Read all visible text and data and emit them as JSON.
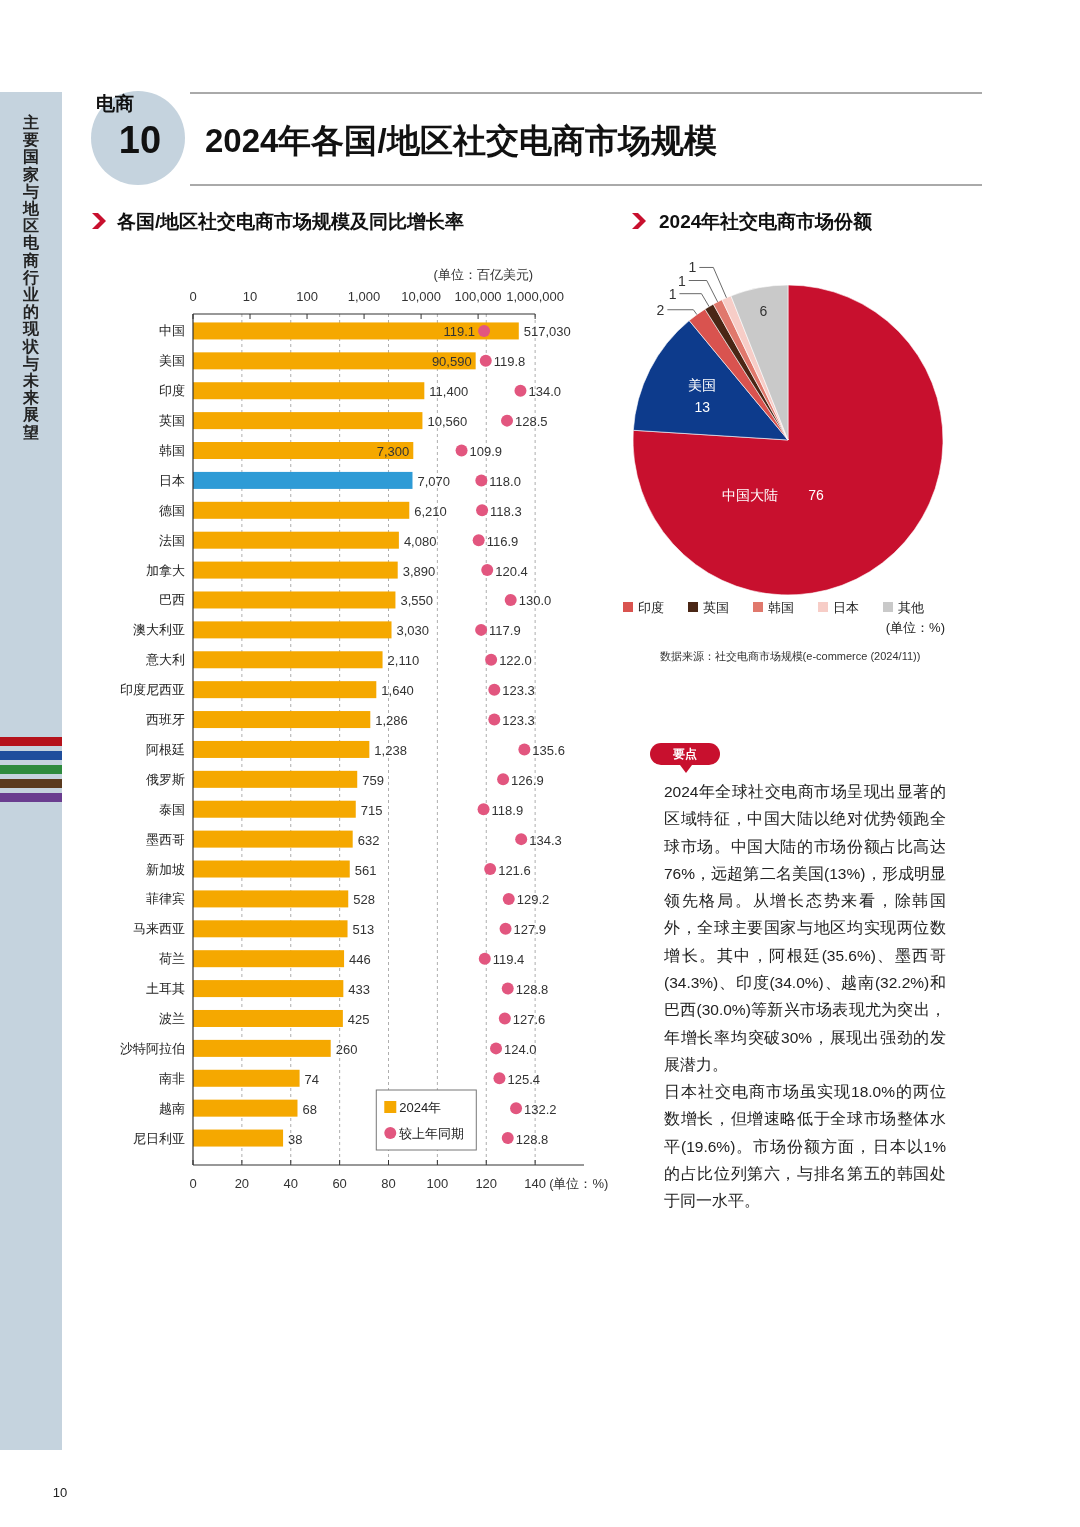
{
  "chart_data": [
    {
      "type": "bar",
      "orientation": "horizontal",
      "title": "各国/地区社交电商市场规模及同比增长率",
      "categories": [
        "中国",
        "美国",
        "印度",
        "英国",
        "韩国",
        "日本",
        "德国",
        "法国",
        "加拿大",
        "巴西",
        "澳大利亚",
        "意大利",
        "印度尼西亚",
        "西班牙",
        "阿根廷",
        "俄罗斯",
        "泰国",
        "墨西哥",
        "新加坡",
        "菲律宾",
        "马来西亚",
        "荷兰",
        "土耳其",
        "波兰",
        "沙特阿拉伯",
        "南非",
        "越南",
        "尼日利亚"
      ],
      "xlabel": "(单位：%)",
      "x2label": "(单位：百亿美元)",
      "xlim": [
        0,
        160
      ],
      "xticks": [
        0,
        20,
        40,
        60,
        80,
        100,
        120,
        140
      ],
      "x2lim": [
        0,
        1000000
      ],
      "x2ticks": [
        0,
        10,
        100,
        {
          "value": 1000,
          "label": "1,000"
        },
        {
          "value": 10000,
          "label": "10,000"
        },
        {
          "value": 100000,
          "label": "100,000"
        },
        {
          "value": 1000000,
          "label": "1,000,000"
        }
      ],
      "log": "x2",
      "grid": "x",
      "legend": "bottom right",
      "series": [
        {
          "name": "2024年",
          "type": "bar",
          "axis": "x2",
          "color": "#f5a800",
          "colors": [
            "#f5a800",
            "#f5a800",
            "#f5a800",
            "#f5a800",
            "#f5a800",
            "#2e9bd6",
            "#f5a800",
            "#f5a800",
            "#f5a800",
            "#f5a800",
            "#f5a800",
            "#f5a800",
            "#f5a800",
            "#f5a800",
            "#f5a800",
            "#f5a800",
            "#f5a800",
            "#f5a800",
            "#f5a800",
            "#f5a800",
            "#f5a800",
            "#f5a800",
            "#f5a800",
            "#f5a800",
            "#f5a800",
            "#f5a800",
            "#f5a800",
            "#f5a800"
          ],
          "values": [
            517030,
            90590,
            11400,
            10560,
            7300,
            7070,
            6210,
            4080,
            3890,
            3550,
            3030,
            2110,
            1640,
            1286,
            1238,
            759,
            715,
            632,
            561,
            528,
            513,
            446,
            433,
            425,
            260,
            74,
            68,
            38
          ],
          "value_labels": [
            "517,030",
            "90,590",
            "11,400",
            "10,560",
            "7,300",
            "7,070",
            "6,210",
            "4,080",
            "3,890",
            "3,550",
            "3,030",
            "2,110",
            "1,640",
            "1,286",
            "1,238",
            "759",
            "715",
            "632",
            "561",
            "528",
            "513",
            "446",
            "433",
            "425",
            "260",
            "74",
            "68",
            "38"
          ]
        },
        {
          "name": "较上年同期",
          "type": "scatter",
          "marker": "circle",
          "color": "#e2567f",
          "values": [
            119.1,
            119.8,
            134.0,
            128.5,
            109.9,
            118.0,
            118.3,
            116.9,
            120.4,
            130.0,
            117.9,
            122.0,
            123.3,
            123.3,
            135.6,
            126.9,
            118.9,
            134.3,
            121.6,
            129.2,
            127.9,
            119.4,
            128.8,
            127.6,
            124.0,
            125.4,
            132.2,
            128.8
          ],
          "value_labels": [
            "119.1",
            "119.8",
            "134.0",
            "128.5",
            "109.9",
            "118.0",
            "118.3",
            "116.9",
            "120.4",
            "130.0",
            "117.9",
            "122.0",
            "123.3",
            "123.3",
            "135.6",
            "126.9",
            "118.9",
            "134.3",
            "121.6",
            "129.2",
            "127.9",
            "119.4",
            "128.8",
            "127.6",
            "124.0",
            "125.4",
            "132.2",
            "128.8"
          ]
        }
      ]
    },
    {
      "type": "pie",
      "title": "2024年社交电商市场份额",
      "categories": [
        "中国大陆",
        "美国",
        "印度",
        "英国",
        "韩国",
        "日本",
        "其他"
      ],
      "values": [
        76,
        13,
        2,
        1,
        1,
        1,
        6
      ],
      "colors": [
        "#c8102e",
        "#0d3b8c",
        "#d9534f",
        "#4a2615",
        "#e0786c",
        "#f7cdc7",
        "#c9c9c9"
      ],
      "data_labels": true,
      "legend": "bottom",
      "annotations": [
        "(单位：%)",
        "数据来源：社交电商市场规模(e-commerce (2024/11))"
      ]
    },
    {
      "type": "other",
      "title": "2024年各国/地区社交电商市场规模",
      "annotations": [
        "电商",
        "10",
        "主要国家与地区电商行业的现状与未来展望",
        "要点",
        "2024年全球社交电商市场呈现出显著的区域特征，中国大陆以绝对优势领跑全球市场。中国大陆的市场份额占比高达76%，远超第二名美国(13%)，形成明显领先格局。从增长态势来看，除韩国外，全球主要国家与地区均实现两位数增长。其中，阿根廷(35.6%)、墨西哥(34.3%)、印度(34.0%)、越南(32.2%)和巴西(30.0%)等新兴市场表现尤为突出，年增长率均突破30%，展现出强劲的发展潜力。",
        "日本社交电商市场虽实现18.0%的两位数增长，但增速略低于全球市场整体水平(19.6%)。市场份额方面，日本以1%的占比位列第六，与排名第五的韩国处于同一水平。",
        "10"
      ]
    }
  ]
}
